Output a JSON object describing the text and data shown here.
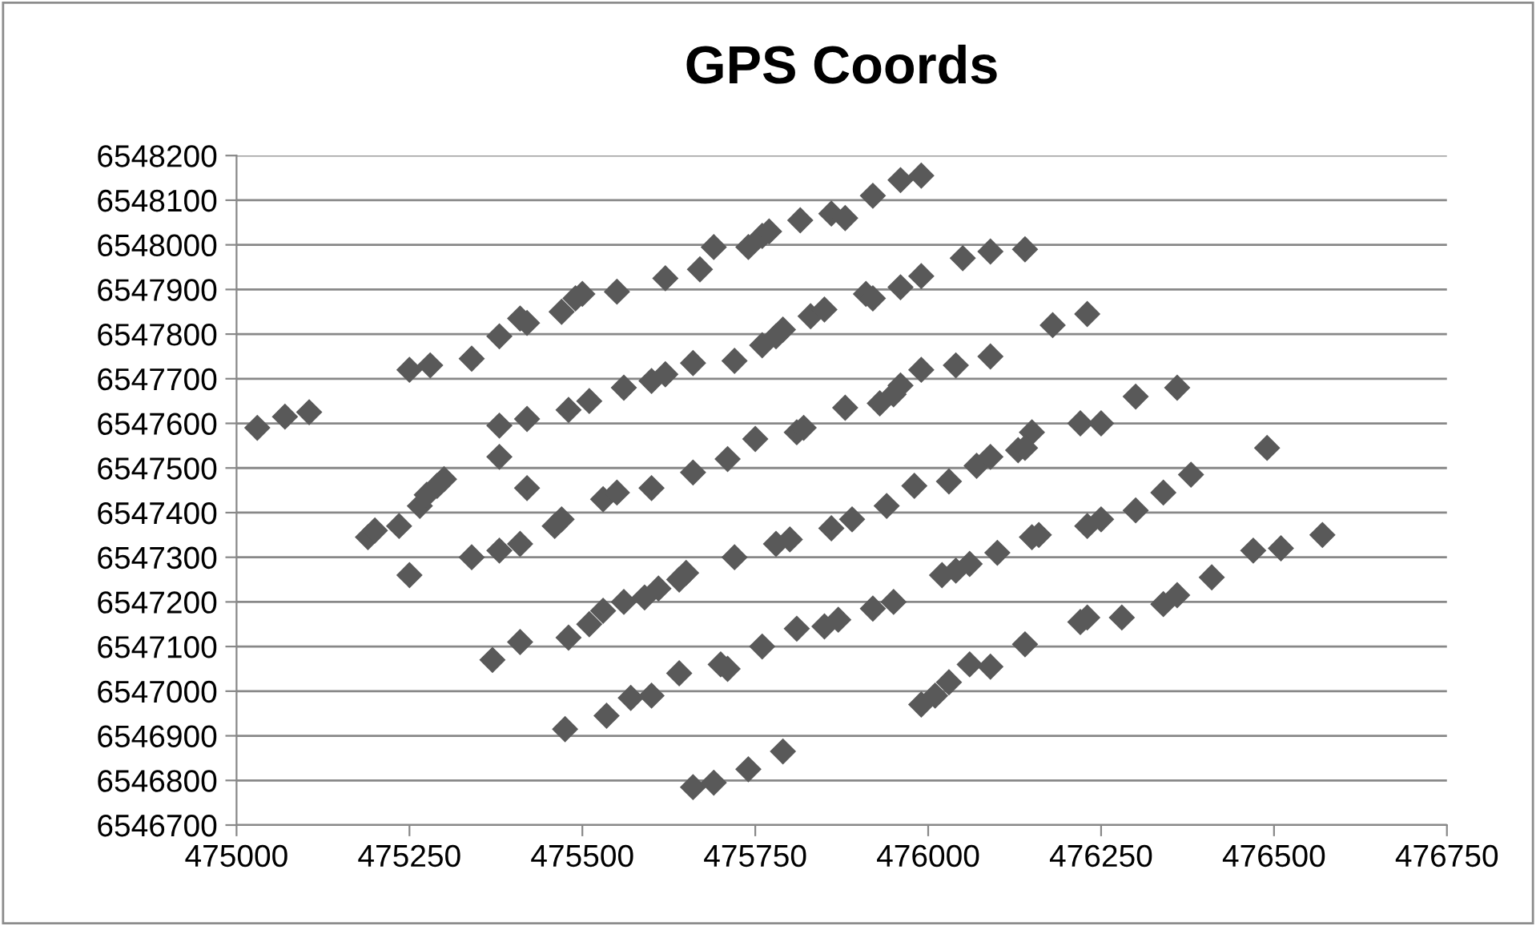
{
  "chart_data": {
    "type": "scatter",
    "title": "GPS Coords",
    "x": [
      475030,
      475070,
      475105,
      475250,
      475280,
      475340,
      475380,
      475410,
      475420,
      475470,
      475490,
      475500,
      475550,
      475620,
      475670,
      475690,
      475740,
      475760,
      475770,
      475815,
      475860,
      475880,
      475920,
      475960,
      475990,
      475190,
      475200,
      475235,
      475265,
      475275,
      475290,
      475300,
      475380,
      475380,
      475420,
      475480,
      475510,
      475560,
      475600,
      475620,
      475660,
      475720,
      475760,
      475780,
      475790,
      475830,
      475850,
      475910,
      475920,
      475960,
      475990,
      476050,
      476090,
      476140,
      476180,
      476230,
      475250,
      475340,
      475380,
      475410,
      475460,
      475470,
      475420,
      475530,
      475550,
      475600,
      475660,
      475710,
      475750,
      475810,
      475820,
      475880,
      475930,
      475950,
      475960,
      475990,
      476040,
      476090,
      476130,
      476150,
      476220,
      476250,
      476300,
      476360,
      476490,
      475370,
      475410,
      475480,
      475510,
      475530,
      475560,
      475590,
      475610,
      475640,
      475650,
      475720,
      475780,
      475800,
      475860,
      475890,
      475940,
      475980,
      476030,
      476070,
      476090,
      476140,
      476160,
      476150,
      476230,
      476250,
      476300,
      476340,
      476380,
      475475,
      475535,
      475570,
      475600,
      475640,
      475700,
      475710,
      475760,
      475810,
      475850,
      475870,
      475920,
      475950,
      476020,
      476040,
      476060,
      476100,
      476220,
      476230,
      476280,
      476340,
      476360,
      476410,
      476470,
      476510,
      476570,
      475660,
      475690,
      475740,
      475790,
      475990,
      476010,
      476030,
      476060,
      476090,
      476140
    ],
    "values": [
      6547590,
      6547615,
      6547625,
      6547720,
      6547730,
      6547745,
      6547795,
      6547835,
      6547825,
      6547850,
      6547880,
      6547890,
      6547895,
      6547925,
      6547945,
      6547995,
      6547995,
      6548020,
      6548030,
      6548055,
      6548070,
      6548060,
      6548110,
      6548145,
      6548155,
      6547345,
      6547360,
      6547370,
      6547415,
      6547440,
      6547460,
      6547475,
      6547525,
      6547595,
      6547610,
      6547630,
      6547650,
      6547680,
      6547695,
      6547710,
      6547735,
      6547740,
      6547775,
      6547795,
      6547810,
      6547840,
      6547855,
      6547890,
      6547880,
      6547905,
      6547930,
      6547970,
      6547985,
      6547990,
      6547820,
      6547845,
      6547260,
      6547300,
      6547315,
      6547330,
      6547370,
      6547385,
      6547455,
      6547430,
      6547445,
      6547455,
      6547490,
      6547520,
      6547565,
      6547580,
      6547590,
      6547635,
      6547645,
      6547665,
      6547685,
      6547720,
      6547730,
      6547750,
      6547540,
      6547580,
      6547600,
      6547600,
      6547660,
      6547680,
      6547545,
      6547070,
      6547110,
      6547120,
      6547150,
      6547180,
      6547200,
      6547210,
      6547230,
      6547250,
      6547265,
      6547300,
      6547330,
      6547340,
      6547365,
      6547385,
      6547415,
      6547460,
      6547470,
      6547505,
      6547525,
      6547545,
      6547350,
      6547345,
      6547370,
      6547385,
      6547405,
      6547445,
      6547485,
      6546915,
      6546945,
      6546985,
      6546990,
      6547040,
      6547060,
      6547050,
      6547100,
      6547140,
      6547145,
      6547160,
      6547185,
      6547200,
      6547260,
      6547270,
      6547285,
      6547310,
      6547155,
      6547165,
      6547165,
      6547195,
      6547215,
      6547255,
      6547315,
      6547320,
      6547350,
      6546785,
      6546795,
      6546825,
      6546865,
      6546970,
      6546990,
      6547020,
      6547060,
      6547055,
      6547105
    ],
    "color": "#595959",
    "marker": "diamond",
    "xlim": [
      475000,
      476750
    ],
    "xticks": [
      475000,
      475250,
      475500,
      475750,
      476000,
      476250,
      476500,
      476750
    ],
    "ylim": [
      6546700,
      6548200
    ],
    "yticks": [
      6546700,
      6546800,
      6546900,
      6547000,
      6547100,
      6547200,
      6547300,
      6547400,
      6547500,
      6547600,
      6547700,
      6547800,
      6547900,
      6548000,
      6548100,
      6548200
    ],
    "grid": "y",
    "legend": false
  }
}
